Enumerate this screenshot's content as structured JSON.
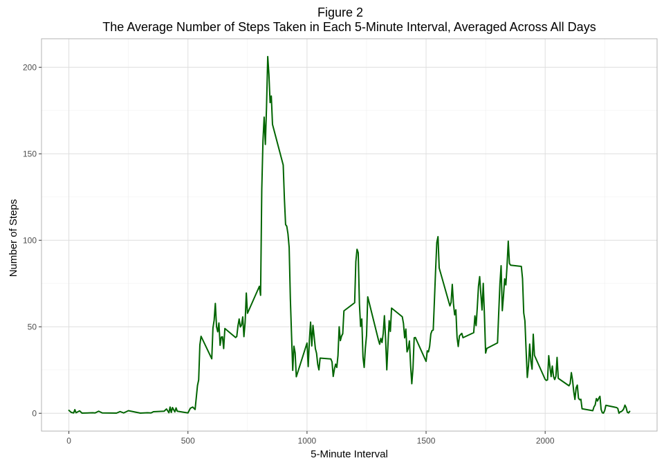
{
  "chart_data": {
    "type": "line",
    "title": "Figure 2",
    "subtitle": "The Average Number of Steps Taken in Each 5-Minute Interval, Averaged Across All Days",
    "xlabel": "5-Minute Interval",
    "ylabel": "Number of Steps",
    "xlim": [
      -115,
      2470
    ],
    "ylim": [
      -10.3,
      216.5
    ],
    "x_ticks": [
      0,
      500,
      1000,
      1500,
      2000
    ],
    "y_ticks": [
      0,
      50,
      100,
      150,
      200
    ],
    "x_tick_labels": [
      "0",
      "500",
      "1000",
      "1500",
      "2000"
    ],
    "y_tick_labels": [
      "0",
      "50",
      "100",
      "150",
      "200"
    ],
    "grid": true,
    "colors": {
      "line": "#006400",
      "grid_major": "#dedede",
      "grid_minor": "#efefef",
      "panel_border": "#b3b3b3"
    },
    "series": [
      {
        "values": [
          [
            0,
            1.7
          ],
          [
            10,
            0.5
          ],
          [
            20,
            0.2
          ],
          [
            25,
            2.1
          ],
          [
            30,
            0.3
          ],
          [
            45,
            1.4
          ],
          [
            55,
            0.1
          ],
          [
            100,
            0.3
          ],
          [
            110,
            0.2
          ],
          [
            125,
            1.2
          ],
          [
            140,
            0.2
          ],
          [
            200,
            0.1
          ],
          [
            215,
            1.0
          ],
          [
            230,
            0.2
          ],
          [
            250,
            1.5
          ],
          [
            300,
            0.1
          ],
          [
            330,
            0.3
          ],
          [
            345,
            0.2
          ],
          [
            355,
            0.9
          ],
          [
            400,
            1.2
          ],
          [
            410,
            2.5
          ],
          [
            420,
            0.3
          ],
          [
            425,
            3.6
          ],
          [
            430,
            0.5
          ],
          [
            435,
            3.3
          ],
          [
            445,
            0.8
          ],
          [
            450,
            3.1
          ],
          [
            455,
            1.2
          ],
          [
            500,
            0.2
          ],
          [
            510,
            2.9
          ],
          [
            520,
            3.6
          ],
          [
            530,
            2.2
          ],
          [
            540,
            16.0
          ],
          [
            545,
            19.3
          ],
          [
            550,
            39.5
          ],
          [
            555,
            44.5
          ],
          [
            600,
            31.5
          ],
          [
            605,
            49.3
          ],
          [
            610,
            53.8
          ],
          [
            615,
            63.5
          ],
          [
            620,
            50.0
          ],
          [
            625,
            47.1
          ],
          [
            630,
            52.2
          ],
          [
            635,
            39.3
          ],
          [
            640,
            44.0
          ],
          [
            645,
            44.2
          ],
          [
            650,
            37.4
          ],
          [
            655,
            49.0
          ],
          [
            700,
            43.8
          ],
          [
            705,
            44.4
          ],
          [
            710,
            50.5
          ],
          [
            715,
            54.5
          ],
          [
            720,
            49.9
          ],
          [
            725,
            51.0
          ],
          [
            730,
            55.7
          ],
          [
            735,
            44.3
          ],
          [
            740,
            52.3
          ],
          [
            745,
            69.5
          ],
          [
            750,
            57.8
          ],
          [
            800,
            73.4
          ],
          [
            805,
            68.2
          ],
          [
            810,
            129.4
          ],
          [
            815,
            157.5
          ],
          [
            820,
            171.2
          ],
          [
            825,
            155.4
          ],
          [
            830,
            177.3
          ],
          [
            835,
            206.2
          ],
          [
            840,
            195.9
          ],
          [
            845,
            179.6
          ],
          [
            850,
            183.4
          ],
          [
            855,
            167.0
          ],
          [
            900,
            143.5
          ],
          [
            905,
            124.0
          ],
          [
            910,
            109.1
          ],
          [
            915,
            108.1
          ],
          [
            920,
            103.7
          ],
          [
            925,
            95.9
          ],
          [
            930,
            66.2
          ],
          [
            935,
            45.2
          ],
          [
            940,
            24.8
          ],
          [
            945,
            38.8
          ],
          [
            950,
            35.0
          ],
          [
            955,
            21.1
          ],
          [
            1000,
            40.6
          ],
          [
            1005,
            27.0
          ],
          [
            1010,
            42.4
          ],
          [
            1015,
            52.7
          ],
          [
            1020,
            38.9
          ],
          [
            1025,
            50.8
          ],
          [
            1030,
            44.3
          ],
          [
            1035,
            37.4
          ],
          [
            1040,
            34.7
          ],
          [
            1045,
            28.3
          ],
          [
            1050,
            25.1
          ],
          [
            1055,
            31.9
          ],
          [
            1100,
            31.4
          ],
          [
            1105,
            29.7
          ],
          [
            1110,
            21.3
          ],
          [
            1115,
            25.5
          ],
          [
            1120,
            28.4
          ],
          [
            1125,
            26.5
          ],
          [
            1130,
            33.4
          ],
          [
            1135,
            50.0
          ],
          [
            1140,
            42.0
          ],
          [
            1145,
            44.6
          ],
          [
            1150,
            46.0
          ],
          [
            1155,
            59.2
          ],
          [
            1200,
            63.9
          ],
          [
            1205,
            87.7
          ],
          [
            1210,
            94.8
          ],
          [
            1215,
            92.8
          ],
          [
            1220,
            63.4
          ],
          [
            1225,
            50.2
          ],
          [
            1230,
            54.5
          ],
          [
            1235,
            32.4
          ],
          [
            1240,
            26.5
          ],
          [
            1245,
            37.7
          ],
          [
            1250,
            45.1
          ],
          [
            1255,
            67.3
          ],
          [
            1300,
            42.3
          ],
          [
            1305,
            39.9
          ],
          [
            1310,
            43.3
          ],
          [
            1315,
            40.9
          ],
          [
            1320,
            46.2
          ],
          [
            1325,
            56.4
          ],
          [
            1330,
            42.8
          ],
          [
            1335,
            25.1
          ],
          [
            1340,
            39.9
          ],
          [
            1345,
            53.5
          ],
          [
            1350,
            47.3
          ],
          [
            1355,
            60.8
          ],
          [
            1400,
            55.8
          ],
          [
            1405,
            51.9
          ],
          [
            1410,
            43.6
          ],
          [
            1415,
            48.7
          ],
          [
            1420,
            35.5
          ],
          [
            1425,
            37.5
          ],
          [
            1430,
            41.8
          ],
          [
            1435,
            27.5
          ],
          [
            1440,
            17.1
          ],
          [
            1445,
            26.1
          ],
          [
            1450,
            43.6
          ],
          [
            1455,
            43.8
          ],
          [
            1500,
            30.0
          ],
          [
            1505,
            36.1
          ],
          [
            1510,
            35.5
          ],
          [
            1515,
            38.8
          ],
          [
            1520,
            45.9
          ],
          [
            1525,
            47.8
          ],
          [
            1530,
            48.1
          ],
          [
            1535,
            65.3
          ],
          [
            1540,
            82.9
          ],
          [
            1545,
            98.7
          ],
          [
            1550,
            102.1
          ],
          [
            1555,
            84.0
          ],
          [
            1600,
            62.1
          ],
          [
            1605,
            64.1
          ],
          [
            1610,
            74.5
          ],
          [
            1615,
            63.2
          ],
          [
            1620,
            56.9
          ],
          [
            1625,
            59.8
          ],
          [
            1630,
            43.9
          ],
          [
            1635,
            38.6
          ],
          [
            1640,
            44.7
          ],
          [
            1645,
            45.5
          ],
          [
            1650,
            46.2
          ],
          [
            1655,
            43.7
          ],
          [
            1700,
            46.6
          ],
          [
            1705,
            56.3
          ],
          [
            1710,
            50.7
          ],
          [
            1715,
            61.2
          ],
          [
            1720,
            73.4
          ],
          [
            1725,
            79.0
          ],
          [
            1730,
            68.9
          ],
          [
            1735,
            59.7
          ],
          [
            1740,
            75.1
          ],
          [
            1745,
            56.5
          ],
          [
            1750,
            34.8
          ],
          [
            1755,
            37.5
          ],
          [
            1800,
            40.7
          ],
          [
            1805,
            58.0
          ],
          [
            1810,
            74.7
          ],
          [
            1815,
            85.3
          ],
          [
            1820,
            59.3
          ],
          [
            1825,
            67.8
          ],
          [
            1830,
            77.7
          ],
          [
            1835,
            74.2
          ],
          [
            1840,
            85.3
          ],
          [
            1845,
            99.5
          ],
          [
            1850,
            86.6
          ],
          [
            1855,
            85.6
          ],
          [
            1900,
            84.9
          ],
          [
            1905,
            77.8
          ],
          [
            1910,
            58.0
          ],
          [
            1915,
            53.4
          ],
          [
            1920,
            36.3
          ],
          [
            1925,
            20.7
          ],
          [
            1930,
            27.4
          ],
          [
            1935,
            40.0
          ],
          [
            1940,
            30.2
          ],
          [
            1945,
            25.5
          ],
          [
            1950,
            45.7
          ],
          [
            1955,
            33.5
          ],
          [
            2000,
            19.6
          ],
          [
            2005,
            19.0
          ],
          [
            2010,
            19.3
          ],
          [
            2015,
            33.3
          ],
          [
            2020,
            26.8
          ],
          [
            2025,
            21.2
          ],
          [
            2030,
            27.3
          ],
          [
            2035,
            21.3
          ],
          [
            2040,
            19.5
          ],
          [
            2045,
            21.3
          ],
          [
            2050,
            32.3
          ],
          [
            2055,
            20.2
          ],
          [
            2100,
            15.9
          ],
          [
            2105,
            17.2
          ],
          [
            2110,
            23.5
          ],
          [
            2115,
            19.2
          ],
          [
            2120,
            12.5
          ],
          [
            2125,
            8.0
          ],
          [
            2130,
            14.7
          ],
          [
            2135,
            16.3
          ],
          [
            2140,
            8.7
          ],
          [
            2145,
            7.8
          ],
          [
            2150,
            8.1
          ],
          [
            2155,
            2.6
          ],
          [
            2200,
            1.5
          ],
          [
            2205,
            3.7
          ],
          [
            2210,
            4.8
          ],
          [
            2215,
            8.5
          ],
          [
            2220,
            7.1
          ],
          [
            2225,
            8.7
          ],
          [
            2230,
            9.8
          ],
          [
            2235,
            2.2
          ],
          [
            2240,
            0.3
          ],
          [
            2245,
            0.1
          ],
          [
            2250,
            1.6
          ],
          [
            2255,
            4.6
          ],
          [
            2300,
            3.3
          ],
          [
            2305,
            2.8
          ],
          [
            2310,
            0.0
          ],
          [
            2315,
            0.8
          ],
          [
            2320,
            1.0
          ],
          [
            2325,
            1.6
          ],
          [
            2330,
            2.6
          ],
          [
            2335,
            4.7
          ],
          [
            2340,
            3.3
          ],
          [
            2345,
            0.6
          ],
          [
            2350,
            0.2
          ],
          [
            2355,
            1.1
          ]
        ]
      }
    ]
  }
}
